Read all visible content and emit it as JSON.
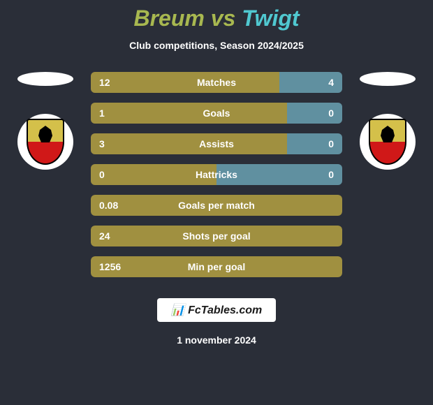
{
  "title": {
    "part1": "Breum",
    "vs": "vs",
    "part2": "Twigt"
  },
  "subtitle": "Club competitions, Season 2024/2025",
  "stats": [
    {
      "label": "Matches",
      "left_val": "12",
      "right_val": "4",
      "left_pct": 75,
      "right_pct": 25,
      "show_right": true
    },
    {
      "label": "Goals",
      "left_val": "1",
      "right_val": "0",
      "left_pct": 78,
      "right_pct": 22,
      "show_right": true
    },
    {
      "label": "Assists",
      "left_val": "3",
      "right_val": "0",
      "left_pct": 78,
      "right_pct": 22,
      "show_right": true
    },
    {
      "label": "Hattricks",
      "left_val": "0",
      "right_val": "0",
      "left_pct": 50,
      "right_pct": 50,
      "show_right": true
    },
    {
      "label": "Goals per match",
      "left_val": "0.08",
      "right_val": "",
      "left_pct": 100,
      "right_pct": 0,
      "show_right": false
    },
    {
      "label": "Shots per goal",
      "left_val": "24",
      "right_val": "",
      "left_pct": 100,
      "right_pct": 0,
      "show_right": false
    },
    {
      "label": "Min per goal",
      "left_val": "1256",
      "right_val": "",
      "left_pct": 100,
      "right_pct": 0,
      "show_right": false
    }
  ],
  "colors": {
    "left_bar": "#a09040",
    "right_bar": "#6090a0",
    "background": "#2a2e38",
    "text": "#ffffff"
  },
  "footer": {
    "logo_text": "📊 FcTables.com",
    "date": "1 november 2024"
  }
}
